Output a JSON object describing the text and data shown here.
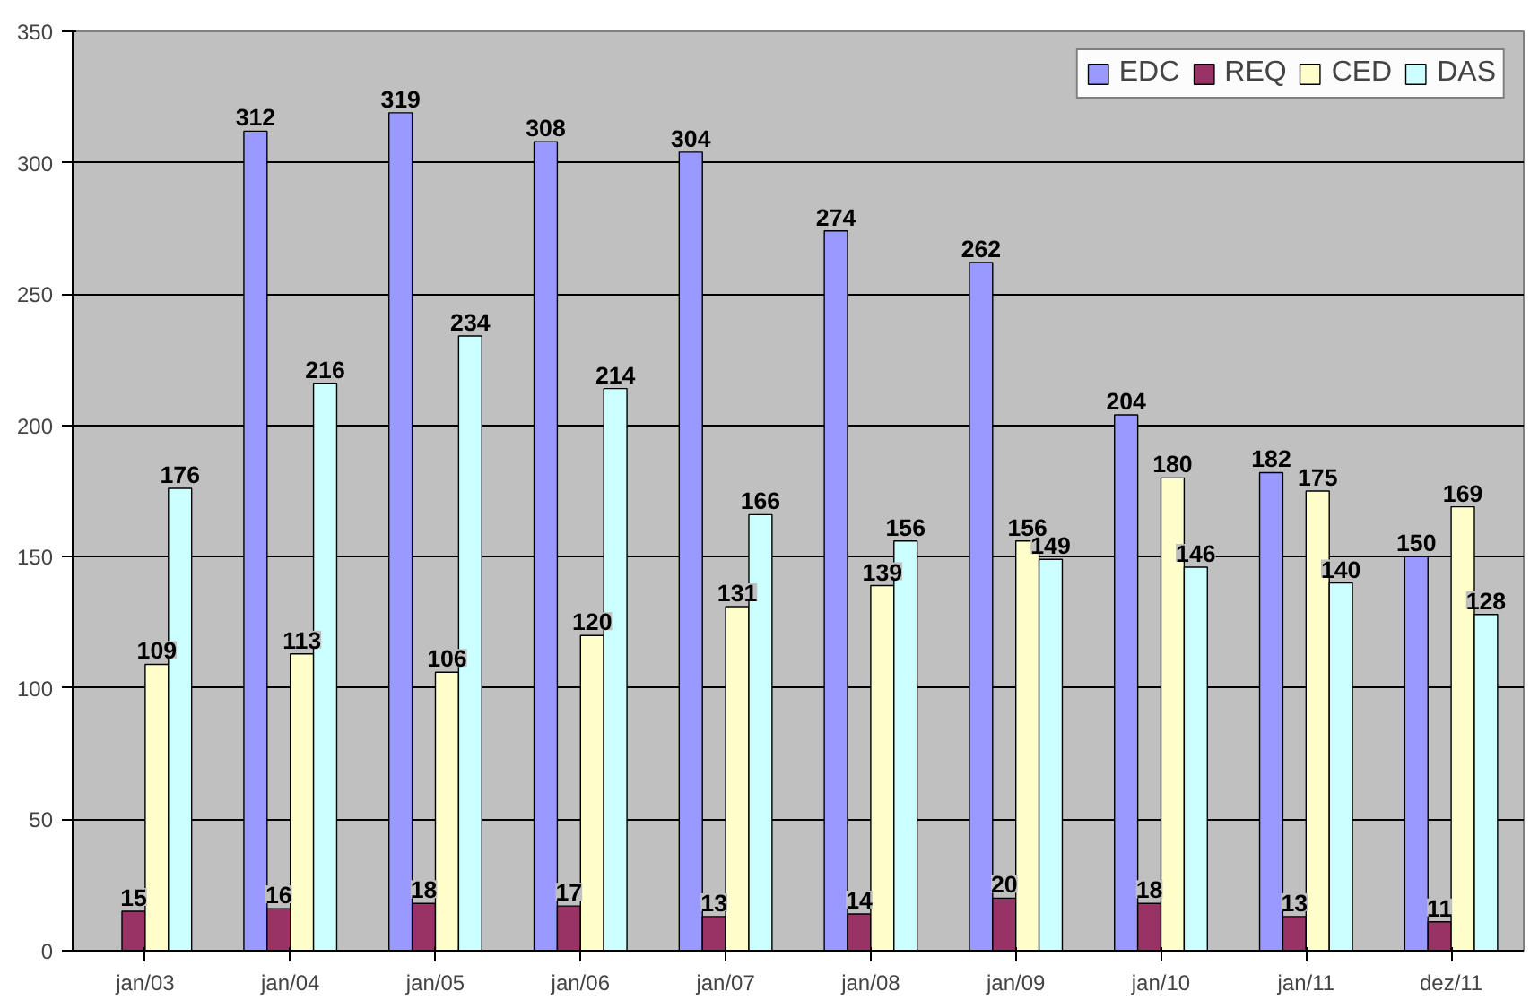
{
  "chart_data": {
    "type": "bar",
    "categories": [
      "jan/03",
      "jan/04",
      "jan/05",
      "jan/06",
      "jan/07",
      "jan/08",
      "jan/09",
      "jan/10",
      "jan/11",
      "dez/11"
    ],
    "series": [
      {
        "name": "EDC",
        "color": "#9999ff",
        "values": [
          null,
          312,
          319,
          308,
          304,
          274,
          262,
          204,
          182,
          150
        ]
      },
      {
        "name": "REQ",
        "color": "#993366",
        "values": [
          15,
          16,
          18,
          17,
          13,
          14,
          20,
          18,
          13,
          11
        ]
      },
      {
        "name": "CED",
        "color": "#ffffcc",
        "values": [
          109,
          113,
          106,
          120,
          131,
          139,
          156,
          180,
          175,
          169
        ]
      },
      {
        "name": "DAS",
        "color": "#ccffff",
        "values": [
          176,
          216,
          234,
          214,
          166,
          156,
          149,
          146,
          140,
          128
        ]
      }
    ],
    "ylim": [
      0,
      350
    ],
    "yticks": [
      0,
      50,
      100,
      150,
      200,
      250,
      300,
      350
    ],
    "grid": "y",
    "legend": "top right",
    "data_labels": true
  }
}
